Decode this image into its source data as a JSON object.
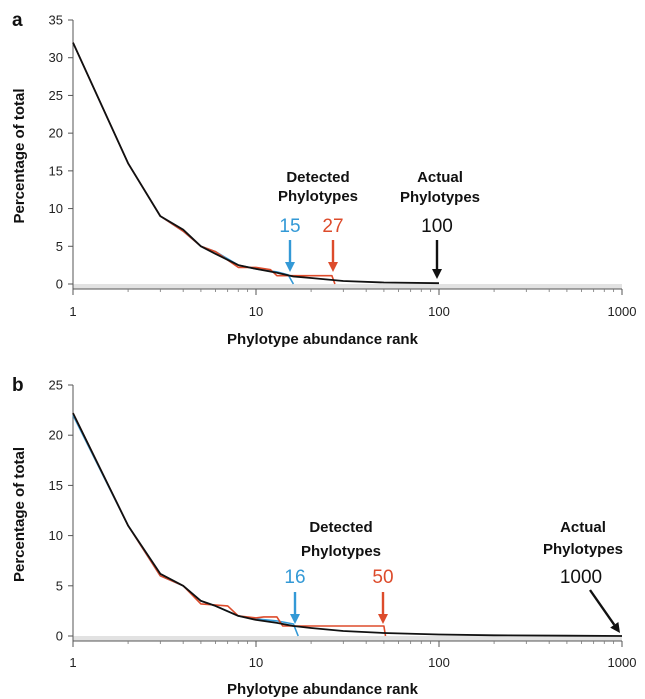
{
  "colors": {
    "actual": "#111111",
    "detected_large": "#dd4b2b",
    "detected_small": "#3399d6",
    "axis_band": "#e2e2e2"
  },
  "chart_data": [
    {
      "panel": "a",
      "type": "line",
      "xscale": "log",
      "xlim": [
        1,
        1000
      ],
      "ylim": [
        0,
        35
      ],
      "xticks": [
        "1",
        "10",
        "100",
        "1000"
      ],
      "yticks": [
        "0",
        "5",
        "10",
        "15",
        "20",
        "25",
        "30",
        "35"
      ],
      "xlabel": "Phylotype abundance rank",
      "ylabel": "Percentage of total",
      "series": [
        {
          "color_key": "actual",
          "points": [
            [
              1,
              32
            ],
            [
              2,
              16
            ],
            [
              3,
              9
            ],
            [
              4,
              7.2
            ],
            [
              5,
              5
            ],
            [
              6,
              4
            ],
            [
              8,
              2.5
            ],
            [
              10,
              2
            ],
            [
              13,
              1.5
            ],
            [
              16,
              1
            ],
            [
              20,
              0.8
            ],
            [
              30,
              0.4
            ],
            [
              50,
              0.2
            ],
            [
              100,
              0.1
            ]
          ]
        },
        {
          "color_key": "detected_large",
          "points": [
            [
              1,
              32
            ],
            [
              2,
              16
            ],
            [
              3,
              9
            ],
            [
              4,
              7
            ],
            [
              5,
              5
            ],
            [
              6,
              4.3
            ],
            [
              8,
              2.2
            ],
            [
              10,
              2.2
            ],
            [
              12,
              1.9
            ],
            [
              13,
              1.1
            ],
            [
              26,
              1.1
            ],
            [
              27,
              0
            ]
          ]
        },
        {
          "color_key": "detected_small",
          "points": [
            [
              1,
              32
            ],
            [
              2,
              16
            ],
            [
              3,
              9
            ],
            [
              4,
              7
            ],
            [
              5,
              5
            ],
            [
              6,
              4.3
            ],
            [
              8,
              2.5
            ],
            [
              10,
              2
            ],
            [
              13,
              1.6
            ],
            [
              14,
              1.4
            ],
            [
              15,
              1.2
            ],
            [
              16,
              0
            ]
          ]
        }
      ],
      "annotations": {
        "detected_label": [
          "Detected",
          "Phylotypes"
        ],
        "actual_label": [
          "Actual",
          "Phylotypes"
        ],
        "markers": [
          {
            "text": "15",
            "x": 15,
            "color_key": "detected_small"
          },
          {
            "text": "27",
            "x": 27,
            "color_key": "detected_large"
          },
          {
            "text": "100",
            "x": 100,
            "color_key": "actual"
          }
        ]
      }
    },
    {
      "panel": "b",
      "type": "line",
      "xscale": "log",
      "xlim": [
        1,
        1000
      ],
      "ylim": [
        0,
        25
      ],
      "xticks": [
        "1",
        "10",
        "100",
        "1000"
      ],
      "yticks": [
        "0",
        "5",
        "10",
        "15",
        "20",
        "25"
      ],
      "xlabel": "Phylotype abundance rank",
      "ylabel": "Percentage of total",
      "series": [
        {
          "color_key": "actual",
          "points": [
            [
              1,
              22.2
            ],
            [
              2,
              11
            ],
            [
              3,
              6.2
            ],
            [
              4,
              5
            ],
            [
              5,
              3.5
            ],
            [
              6,
              3
            ],
            [
              8,
              2
            ],
            [
              10,
              1.6
            ],
            [
              13,
              1.3
            ],
            [
              16,
              1
            ],
            [
              20,
              0.8
            ],
            [
              30,
              0.5
            ],
            [
              50,
              0.3
            ],
            [
              100,
              0.15
            ],
            [
              200,
              0.07
            ],
            [
              500,
              0.03
            ],
            [
              1000,
              0
            ]
          ]
        },
        {
          "color_key": "detected_large",
          "points": [
            [
              1,
              22.2
            ],
            [
              2,
              11
            ],
            [
              3,
              6
            ],
            [
              4,
              5
            ],
            [
              5,
              3.2
            ],
            [
              7,
              3
            ],
            [
              8,
              2
            ],
            [
              10,
              1.8
            ],
            [
              11,
              1.9
            ],
            [
              13,
              1.9
            ],
            [
              14,
              1
            ],
            [
              50,
              1
            ],
            [
              51,
              0
            ]
          ]
        },
        {
          "color_key": "detected_small",
          "points": [
            [
              1,
              22
            ],
            [
              2,
              11
            ],
            [
              3,
              6
            ],
            [
              4,
              5
            ],
            [
              5,
              3.5
            ],
            [
              6,
              3
            ],
            [
              8,
              2
            ],
            [
              10,
              1.7
            ],
            [
              13,
              1.5
            ],
            [
              16,
              1.2
            ],
            [
              17,
              0
            ]
          ]
        }
      ],
      "annotations": {
        "detected_label": [
          "Detected",
          "Phylotypes"
        ],
        "actual_label": [
          "Actual",
          "Phylotypes"
        ],
        "markers": [
          {
            "text": "16",
            "x": 16,
            "color_key": "detected_small"
          },
          {
            "text": "50",
            "x": 50,
            "color_key": "detected_large"
          },
          {
            "text": "1000",
            "x": 1000,
            "color_key": "actual"
          }
        ]
      }
    }
  ]
}
